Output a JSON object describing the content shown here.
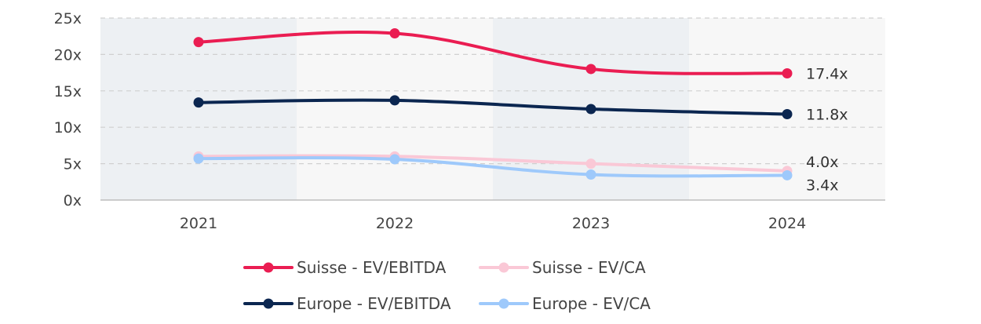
{
  "chart_data": {
    "type": "line",
    "categories": [
      "2021",
      "2022",
      "2023",
      "2024"
    ],
    "ylim": [
      0,
      25
    ],
    "yticks": [
      0,
      5,
      10,
      15,
      20,
      25
    ],
    "ytick_labels": [
      "0x",
      "5x",
      "10x",
      "15x",
      "20x",
      "25x"
    ],
    "grid": "horizontal dashed",
    "band_colors": [
      "#edf0f3",
      "#f7f7f7"
    ],
    "legend_position": "bottom",
    "series": [
      {
        "name": "Suisse - EV/EBITDA",
        "values": [
          21.7,
          22.9,
          18.0,
          17.4
        ],
        "color": "#ea1d52",
        "end_label": "17.4x"
      },
      {
        "name": "Suisse - EV/CA",
        "values": [
          6.0,
          6.0,
          5.0,
          4.0
        ],
        "color": "#fac8d6",
        "end_label": "4.0x"
      },
      {
        "name": "Europe - EV/EBITDA",
        "values": [
          13.4,
          13.7,
          12.5,
          11.8
        ],
        "color": "#0b2650",
        "end_label": "11.8x"
      },
      {
        "name": "Europe - EV/CA",
        "values": [
          5.7,
          5.6,
          3.5,
          3.4
        ],
        "color": "#9ec9fb",
        "end_label": "3.4x"
      }
    ]
  }
}
